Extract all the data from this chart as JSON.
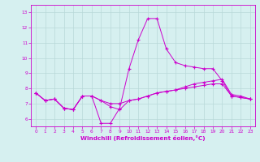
{
  "title": "",
  "xlabel": "Windchill (Refroidissement éolien,°C)",
  "ylabel": "",
  "background_color": "#d6f0f0",
  "grid_color": "#b8d8d8",
  "line_color": "#cc00cc",
  "xlim": [
    -0.5,
    23.5
  ],
  "ylim": [
    5.5,
    13.5
  ],
  "xticks": [
    0,
    1,
    2,
    3,
    4,
    5,
    6,
    7,
    8,
    9,
    10,
    11,
    12,
    13,
    14,
    15,
    16,
    17,
    18,
    19,
    20,
    21,
    22,
    23
  ],
  "yticks": [
    6,
    7,
    8,
    9,
    10,
    11,
    12,
    13
  ],
  "series": [
    {
      "x": [
        0,
        1,
        2,
        3,
        4,
        5,
        6,
        7,
        8,
        9,
        10,
        11,
        12,
        13,
        14,
        15,
        16,
        17,
        18,
        19,
        20,
        21,
        22,
        23
      ],
      "y": [
        7.7,
        7.2,
        7.3,
        6.7,
        6.6,
        7.5,
        7.5,
        7.2,
        6.8,
        6.6,
        7.2,
        7.3,
        7.5,
        7.7,
        7.8,
        7.9,
        8.0,
        8.1,
        8.2,
        8.3,
        8.3,
        7.5,
        7.4,
        7.3
      ]
    },
    {
      "x": [
        0,
        1,
        2,
        3,
        4,
        5,
        6,
        7,
        8,
        9,
        10,
        11,
        12,
        13,
        14,
        15,
        16,
        17,
        18,
        19,
        20,
        21,
        22,
        23
      ],
      "y": [
        7.7,
        7.2,
        7.3,
        6.7,
        6.6,
        7.5,
        7.5,
        5.7,
        5.7,
        6.7,
        9.3,
        11.2,
        12.6,
        12.6,
        10.6,
        9.7,
        9.5,
        9.4,
        9.3,
        9.3,
        8.5,
        7.5,
        7.4,
        7.3
      ]
    },
    {
      "x": [
        0,
        1,
        2,
        3,
        4,
        5,
        6,
        7,
        8,
        9,
        10,
        11,
        12,
        13,
        14,
        15,
        16,
        17,
        18,
        19,
        20,
        21,
        22,
        23
      ],
      "y": [
        7.7,
        7.2,
        7.3,
        6.7,
        6.6,
        7.5,
        7.5,
        7.2,
        7.0,
        7.0,
        7.2,
        7.3,
        7.5,
        7.7,
        7.8,
        7.9,
        8.1,
        8.3,
        8.4,
        8.5,
        8.6,
        7.6,
        7.5,
        7.3
      ]
    }
  ]
}
